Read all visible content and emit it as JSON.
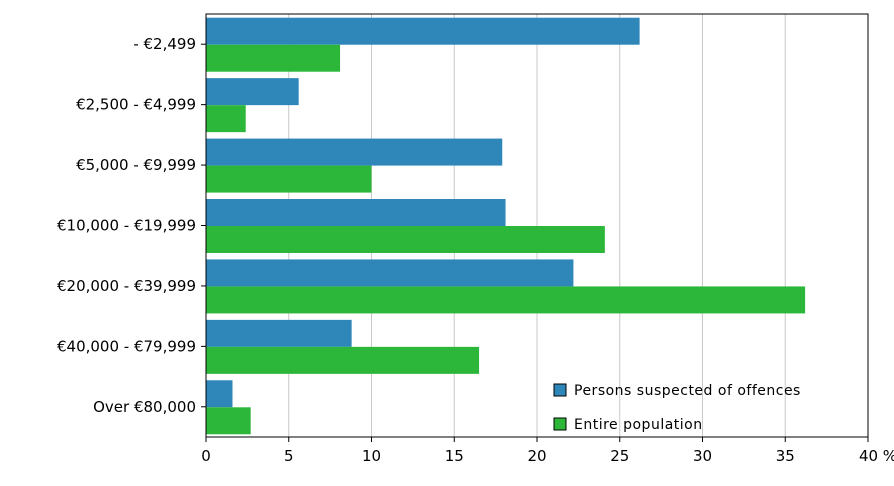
{
  "chart_data": {
    "type": "bar",
    "orientation": "horizontal",
    "categories": [
      "- €2,499",
      "€2,500 - €4,999",
      "€5,000 - €9,999",
      "€10,000 - €19,999",
      "€20,000 - €39,999",
      "€40,000 - €79,999",
      "Over €80,000"
    ],
    "series": [
      {
        "name": "Persons suspected of offences",
        "color": "#2e86b9",
        "values": [
          26.2,
          5.6,
          17.9,
          18.1,
          22.2,
          8.8,
          1.6
        ]
      },
      {
        "name": "Entire population",
        "color": "#2db73a",
        "values": [
          8.1,
          2.4,
          10.0,
          24.1,
          36.2,
          16.5,
          2.7
        ]
      }
    ],
    "x_ticks": [
      "0",
      "5",
      "10",
      "15",
      "20",
      "25",
      "30",
      "35",
      "40 %"
    ],
    "xlim": [
      0,
      40
    ],
    "grid": true,
    "legend_position": "bottom-right"
  }
}
